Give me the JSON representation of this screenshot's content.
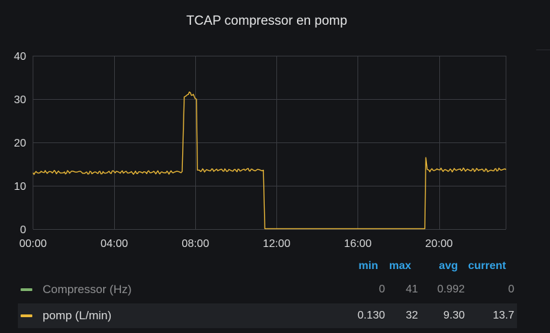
{
  "panel": {
    "title": "TCAP compressor en pomp"
  },
  "colors": {
    "background": "#141518",
    "grid": "#3a3c41",
    "pomp_series": "#eab839",
    "compressor_series": "#7eb26d",
    "legend_header": "#33a2e5"
  },
  "chart_data": {
    "type": "line",
    "x_ticks": [
      "00:00",
      "04:00",
      "08:00",
      "12:00",
      "16:00",
      "20:00"
    ],
    "y_ticks": [
      "0",
      "10",
      "20",
      "30",
      "40"
    ],
    "xlim_hours": [
      0,
      23.3
    ],
    "ylim": [
      0,
      40
    ],
    "grid": true,
    "legend_placement": "bottom",
    "series": [
      {
        "name": "Compressor (Hz)",
        "color": "#7eb26d",
        "x_hours": [],
        "values": []
      },
      {
        "name": "pomp (L/min)",
        "color": "#eab839",
        "x_hours": [
          0,
          0.5,
          1.0,
          1.5,
          2.0,
          2.4,
          2.5,
          3.0,
          3.5,
          4.0,
          4.5,
          5.0,
          5.5,
          6.0,
          6.5,
          7.0,
          7.35,
          7.45,
          7.6,
          7.75,
          7.95,
          8.05,
          8.1,
          8.2,
          8.5,
          9.0,
          9.5,
          10.0,
          10.5,
          11.0,
          11.35,
          11.42,
          12.0,
          14.0,
          16.0,
          18.0,
          19.3,
          19.35,
          19.42,
          19.5,
          20.0,
          20.5,
          21.0,
          21.5,
          22.0,
          22.5,
          23.0,
          23.3
        ],
        "values": [
          13.0,
          13.1,
          13.2,
          13.0,
          13.3,
          13.1,
          12.9,
          13.1,
          13.0,
          13.2,
          13.1,
          13.0,
          13.2,
          13.1,
          13.0,
          13.2,
          13.3,
          30.5,
          31.0,
          31.5,
          30.5,
          30.0,
          13.6,
          13.6,
          13.5,
          13.7,
          13.6,
          13.5,
          13.7,
          13.6,
          13.6,
          0.1,
          0.1,
          0.1,
          0.1,
          0.1,
          0.1,
          16.5,
          13.8,
          13.6,
          13.7,
          13.5,
          13.8,
          13.6,
          13.7,
          13.5,
          13.8,
          13.7
        ]
      }
    ]
  },
  "legend": {
    "headers": {
      "min": "min",
      "max": "max",
      "avg": "avg",
      "current": "current"
    },
    "rows": [
      {
        "name": "Compressor (Hz)",
        "min": "0",
        "max": "41",
        "avg": "0.992",
        "current": "0"
      },
      {
        "name": "pomp (L/min)",
        "min": "0.130",
        "max": "32",
        "avg": "9.30",
        "current": "13.7"
      }
    ]
  }
}
